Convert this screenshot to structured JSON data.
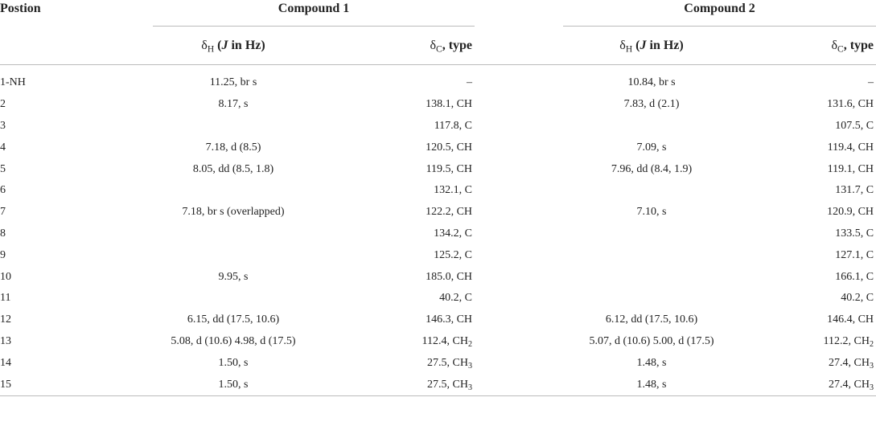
{
  "table": {
    "header": {
      "position": "Postion",
      "compounds": [
        "Compound 1",
        "Compound 2"
      ],
      "h_col": [
        "δ",
        "H",
        " (",
        "J",
        " in Hz)"
      ],
      "c_col": [
        "δ",
        "C",
        ", type"
      ]
    },
    "rows": [
      [
        "1-NH",
        "11.25, br s",
        [
          "–"
        ],
        "10.84, br s",
        [
          "–"
        ]
      ],
      [
        "2",
        "8.17, s",
        [
          "138.1, CH"
        ],
        "7.83, d (2.1)",
        [
          "131.6, CH"
        ]
      ],
      [
        "3",
        null,
        [
          "117.8, C"
        ],
        null,
        [
          "107.5, C"
        ]
      ],
      [
        "4",
        "7.18, d (8.5)",
        [
          "120.5, CH"
        ],
        "7.09, s",
        [
          "119.4, CH"
        ]
      ],
      [
        "5",
        "8.05, dd (8.5, 1.8)",
        [
          "119.5, CH"
        ],
        "7.96, dd (8.4, 1.9)",
        [
          "119.1, CH"
        ]
      ],
      [
        "6",
        null,
        [
          "132.1, C"
        ],
        null,
        [
          "131.7, C"
        ]
      ],
      [
        "7",
        "7.18, br s (overlapped)",
        [
          "122.2, CH"
        ],
        "7.10, s",
        [
          "120.9, CH"
        ]
      ],
      [
        "8",
        null,
        [
          "134.2, C"
        ],
        null,
        [
          "133.5, C"
        ]
      ],
      [
        "9",
        null,
        [
          "125.2, C"
        ],
        null,
        [
          "127.1, C"
        ]
      ],
      [
        "10",
        "9.95, s",
        [
          "185.0, CH"
        ],
        null,
        [
          "166.1, C"
        ]
      ],
      [
        "11",
        null,
        [
          "40.2, C"
        ],
        null,
        [
          "40.2, C"
        ]
      ],
      [
        "12",
        "6.15, dd (17.5, 10.6)",
        [
          "146.3, CH"
        ],
        "6.12, dd (17.5, 10.6)",
        [
          "146.4, CH"
        ]
      ],
      [
        "13",
        "5.08, d (10.6) 4.98, d (17.5)",
        [
          "112.4, CH",
          "2"
        ],
        "5.07, d (10.6) 5.00, d (17.5)",
        [
          "112.2, CH",
          "2"
        ]
      ],
      [
        "14",
        "1.50, s",
        [
          "27.5, CH",
          "3"
        ],
        "1.48, s",
        [
          "27.4, CH",
          "3"
        ]
      ],
      [
        "15",
        "1.50, s",
        [
          "27.5, CH",
          "3"
        ],
        "1.48, s",
        [
          "27.4, CH",
          "3"
        ]
      ]
    ]
  }
}
